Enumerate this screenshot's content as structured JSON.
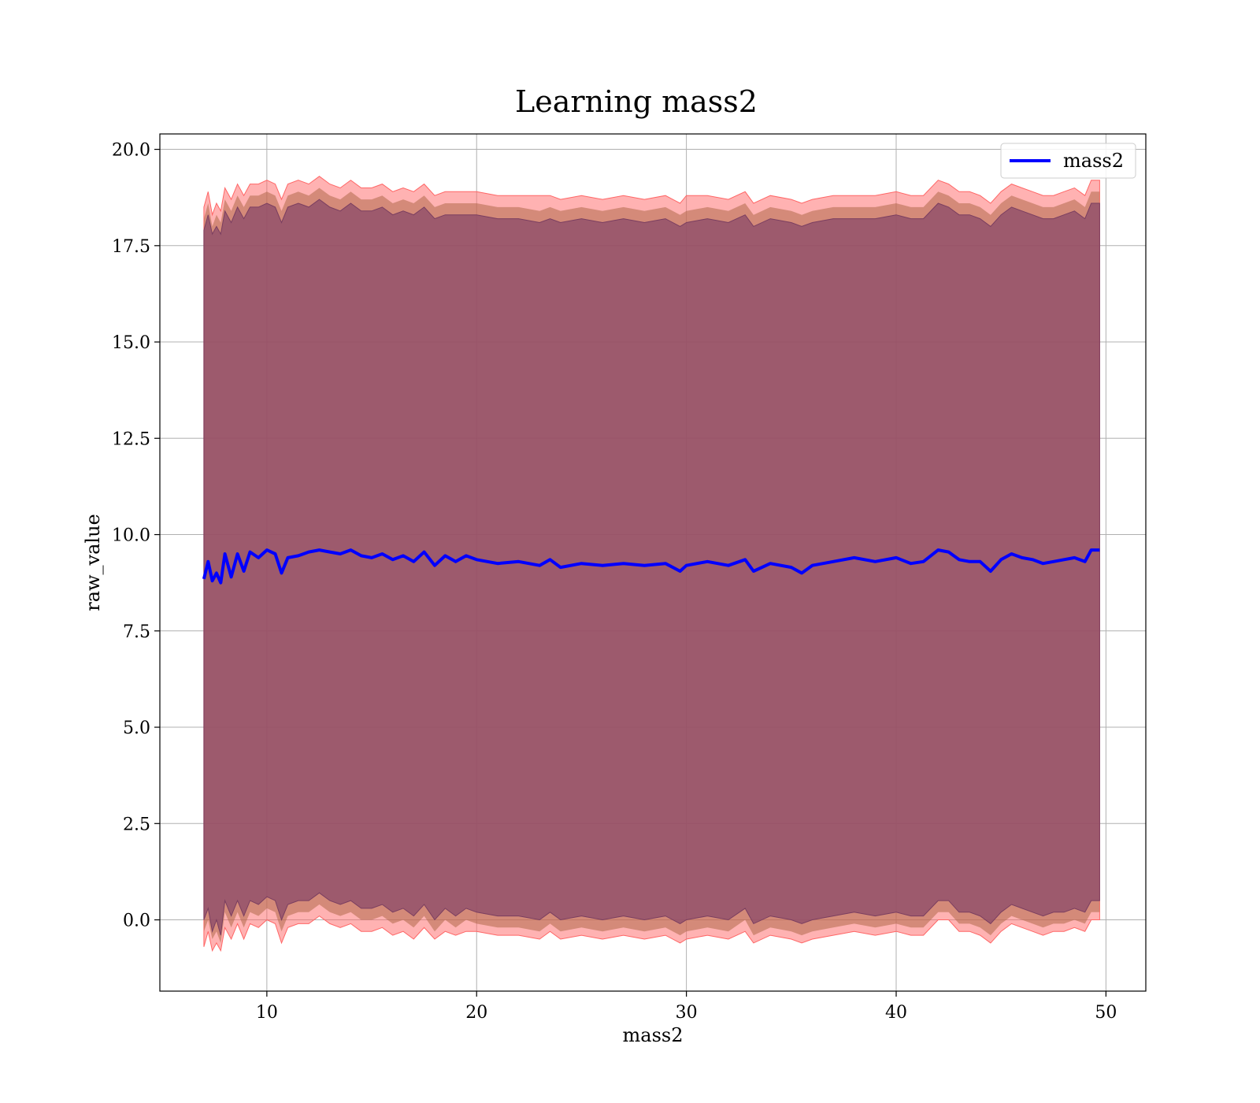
{
  "chart_data": {
    "type": "line",
    "title": "Learning mass2",
    "xlabel": "mass2",
    "ylabel": "raw_value",
    "xlim": [
      4.9,
      51.9
    ],
    "ylim": [
      -1.85,
      20.4
    ],
    "xticks": [
      10,
      20,
      30,
      40,
      50
    ],
    "xtick_labels": [
      "10",
      "20",
      "30",
      "40",
      "50"
    ],
    "yticks": [
      0.0,
      2.5,
      5.0,
      7.5,
      10.0,
      12.5,
      15.0,
      17.5,
      20.0
    ],
    "ytick_labels": [
      "0.0",
      "2.5",
      "5.0",
      "7.5",
      "10.0",
      "12.5",
      "15.0",
      "17.5",
      "20.0"
    ],
    "grid": true,
    "legend": {
      "position": "top-right",
      "entries": [
        "mass2"
      ]
    },
    "colors": {
      "line": "#0000ff",
      "band_outer": "#ff6666",
      "band_inner": "#8b4a6a",
      "band_mid": "#b06a4a",
      "grid": "#b0b0b0"
    },
    "x": [
      7.0,
      7.2,
      7.4,
      7.6,
      7.8,
      8.0,
      8.3,
      8.6,
      8.9,
      9.2,
      9.6,
      10.0,
      10.4,
      10.7,
      11.0,
      11.5,
      12.0,
      12.5,
      13.0,
      13.5,
      14.0,
      14.5,
      15.0,
      15.5,
      16.0,
      16.5,
      17.0,
      17.5,
      18.0,
      18.5,
      19.0,
      19.5,
      20.0,
      21.0,
      22.0,
      23.0,
      23.5,
      24.0,
      25.0,
      26.0,
      27.0,
      28.0,
      29.0,
      29.7,
      30.0,
      31.0,
      32.0,
      32.8,
      33.2,
      34.0,
      35.0,
      35.5,
      36.0,
      37.0,
      38.0,
      39.0,
      40.0,
      40.7,
      41.3,
      42.0,
      42.5,
      43.0,
      43.5,
      44.0,
      44.5,
      45.0,
      45.5,
      46.0,
      46.5,
      47.0,
      47.5,
      48.0,
      48.5,
      49.0,
      49.3,
      49.7
    ],
    "series": [
      {
        "name": "mass2",
        "mean": [
          8.85,
          9.3,
          8.8,
          9.0,
          8.75,
          9.5,
          8.9,
          9.5,
          9.05,
          9.55,
          9.4,
          9.6,
          9.5,
          9.0,
          9.4,
          9.45,
          9.55,
          9.6,
          9.55,
          9.5,
          9.6,
          9.45,
          9.4,
          9.5,
          9.35,
          9.45,
          9.3,
          9.55,
          9.2,
          9.45,
          9.3,
          9.45,
          9.35,
          9.25,
          9.3,
          9.2,
          9.35,
          9.15,
          9.25,
          9.2,
          9.25,
          9.2,
          9.25,
          9.05,
          9.2,
          9.3,
          9.2,
          9.35,
          9.05,
          9.25,
          9.15,
          9.0,
          9.2,
          9.3,
          9.4,
          9.3,
          9.4,
          9.25,
          9.3,
          9.6,
          9.55,
          9.35,
          9.3,
          9.3,
          9.05,
          9.35,
          9.5,
          9.4,
          9.35,
          9.25,
          9.3,
          9.35,
          9.4,
          9.3,
          9.6,
          9.6
        ],
        "upper_outer": [
          18.5,
          18.9,
          18.3,
          18.6,
          18.4,
          19.0,
          18.7,
          19.1,
          18.8,
          19.1,
          19.1,
          19.2,
          19.1,
          18.7,
          19.1,
          19.2,
          19.1,
          19.3,
          19.1,
          19.0,
          19.2,
          19.0,
          19.0,
          19.1,
          18.9,
          19.0,
          18.9,
          19.1,
          18.8,
          18.9,
          18.9,
          18.9,
          18.9,
          18.8,
          18.8,
          18.8,
          18.8,
          18.7,
          18.8,
          18.7,
          18.8,
          18.7,
          18.8,
          18.6,
          18.8,
          18.8,
          18.7,
          18.9,
          18.6,
          18.8,
          18.7,
          18.6,
          18.7,
          18.8,
          18.8,
          18.8,
          18.9,
          18.8,
          18.8,
          19.2,
          19.1,
          18.9,
          18.9,
          18.8,
          18.6,
          18.9,
          19.1,
          19.0,
          18.9,
          18.8,
          18.8,
          18.9,
          19.0,
          18.8,
          19.2,
          19.2
        ],
        "upper_mid": [
          18.2,
          18.6,
          18.0,
          18.3,
          18.1,
          18.7,
          18.4,
          18.8,
          18.5,
          18.8,
          18.8,
          18.9,
          18.8,
          18.4,
          18.8,
          18.9,
          18.8,
          19.0,
          18.8,
          18.7,
          18.9,
          18.7,
          18.7,
          18.8,
          18.6,
          18.7,
          18.6,
          18.8,
          18.5,
          18.6,
          18.6,
          18.6,
          18.6,
          18.5,
          18.5,
          18.4,
          18.5,
          18.4,
          18.5,
          18.4,
          18.5,
          18.4,
          18.5,
          18.3,
          18.4,
          18.5,
          18.4,
          18.6,
          18.3,
          18.5,
          18.4,
          18.3,
          18.4,
          18.5,
          18.5,
          18.5,
          18.6,
          18.5,
          18.5,
          18.9,
          18.8,
          18.6,
          18.6,
          18.5,
          18.3,
          18.6,
          18.8,
          18.7,
          18.6,
          18.5,
          18.5,
          18.6,
          18.7,
          18.5,
          18.9,
          18.9
        ],
        "upper_inner": [
          17.9,
          18.3,
          17.8,
          18.0,
          17.8,
          18.4,
          18.1,
          18.5,
          18.2,
          18.5,
          18.5,
          18.6,
          18.5,
          18.1,
          18.5,
          18.6,
          18.5,
          18.7,
          18.5,
          18.4,
          18.6,
          18.4,
          18.4,
          18.5,
          18.3,
          18.4,
          18.3,
          18.5,
          18.2,
          18.3,
          18.3,
          18.3,
          18.3,
          18.2,
          18.2,
          18.1,
          18.2,
          18.1,
          18.2,
          18.1,
          18.2,
          18.1,
          18.2,
          18.0,
          18.1,
          18.2,
          18.1,
          18.3,
          18.0,
          18.2,
          18.1,
          18.0,
          18.1,
          18.2,
          18.2,
          18.2,
          18.3,
          18.2,
          18.2,
          18.6,
          18.5,
          18.3,
          18.3,
          18.2,
          18.0,
          18.3,
          18.5,
          18.4,
          18.3,
          18.2,
          18.2,
          18.3,
          18.4,
          18.2,
          18.6,
          18.6
        ],
        "lower_inner": [
          0.0,
          0.3,
          -0.3,
          0.0,
          -0.4,
          0.5,
          0.1,
          0.5,
          0.1,
          0.5,
          0.4,
          0.6,
          0.5,
          0.0,
          0.4,
          0.5,
          0.5,
          0.7,
          0.5,
          0.4,
          0.5,
          0.3,
          0.3,
          0.4,
          0.2,
          0.3,
          0.1,
          0.4,
          0.0,
          0.3,
          0.1,
          0.3,
          0.2,
          0.1,
          0.1,
          0.0,
          0.2,
          0.0,
          0.1,
          0.0,
          0.1,
          0.0,
          0.1,
          -0.1,
          0.0,
          0.1,
          0.0,
          0.3,
          -0.1,
          0.1,
          0.0,
          -0.1,
          0.0,
          0.1,
          0.2,
          0.1,
          0.2,
          0.1,
          0.1,
          0.5,
          0.5,
          0.2,
          0.2,
          0.1,
          -0.1,
          0.2,
          0.4,
          0.3,
          0.2,
          0.1,
          0.2,
          0.2,
          0.3,
          0.2,
          0.5,
          0.5
        ],
        "lower_mid": [
          -0.3,
          0.0,
          -0.5,
          -0.3,
          -0.6,
          0.2,
          -0.2,
          0.2,
          -0.2,
          0.2,
          0.1,
          0.3,
          0.2,
          -0.3,
          0.1,
          0.2,
          0.2,
          0.4,
          0.2,
          0.1,
          0.2,
          0.0,
          0.0,
          0.1,
          -0.1,
          0.0,
          -0.2,
          0.1,
          -0.3,
          0.0,
          -0.2,
          0.0,
          -0.1,
          -0.2,
          -0.2,
          -0.3,
          -0.1,
          -0.3,
          -0.2,
          -0.3,
          -0.2,
          -0.3,
          -0.2,
          -0.4,
          -0.3,
          -0.2,
          -0.3,
          0.0,
          -0.4,
          -0.2,
          -0.3,
          -0.4,
          -0.3,
          -0.2,
          -0.1,
          -0.2,
          -0.1,
          -0.2,
          -0.2,
          0.2,
          0.2,
          -0.1,
          -0.1,
          -0.2,
          -0.4,
          -0.1,
          0.1,
          0.0,
          -0.1,
          -0.2,
          -0.1,
          -0.1,
          0.0,
          -0.1,
          0.2,
          0.2
        ],
        "lower_outer": [
          -0.7,
          -0.3,
          -0.8,
          -0.6,
          -0.8,
          -0.2,
          -0.5,
          -0.1,
          -0.5,
          -0.1,
          -0.2,
          0.0,
          -0.1,
          -0.6,
          -0.2,
          -0.1,
          -0.1,
          0.1,
          -0.1,
          -0.2,
          -0.1,
          -0.3,
          -0.3,
          -0.2,
          -0.4,
          -0.3,
          -0.5,
          -0.2,
          -0.5,
          -0.3,
          -0.4,
          -0.3,
          -0.3,
          -0.4,
          -0.4,
          -0.5,
          -0.3,
          -0.5,
          -0.4,
          -0.5,
          -0.4,
          -0.5,
          -0.4,
          -0.6,
          -0.5,
          -0.4,
          -0.5,
          -0.3,
          -0.6,
          -0.4,
          -0.5,
          -0.6,
          -0.5,
          -0.4,
          -0.3,
          -0.4,
          -0.3,
          -0.4,
          -0.4,
          0.0,
          0.0,
          -0.3,
          -0.3,
          -0.4,
          -0.6,
          -0.3,
          -0.1,
          -0.2,
          -0.3,
          -0.4,
          -0.3,
          -0.3,
          -0.2,
          -0.3,
          0.0,
          0.0
        ]
      }
    ]
  }
}
